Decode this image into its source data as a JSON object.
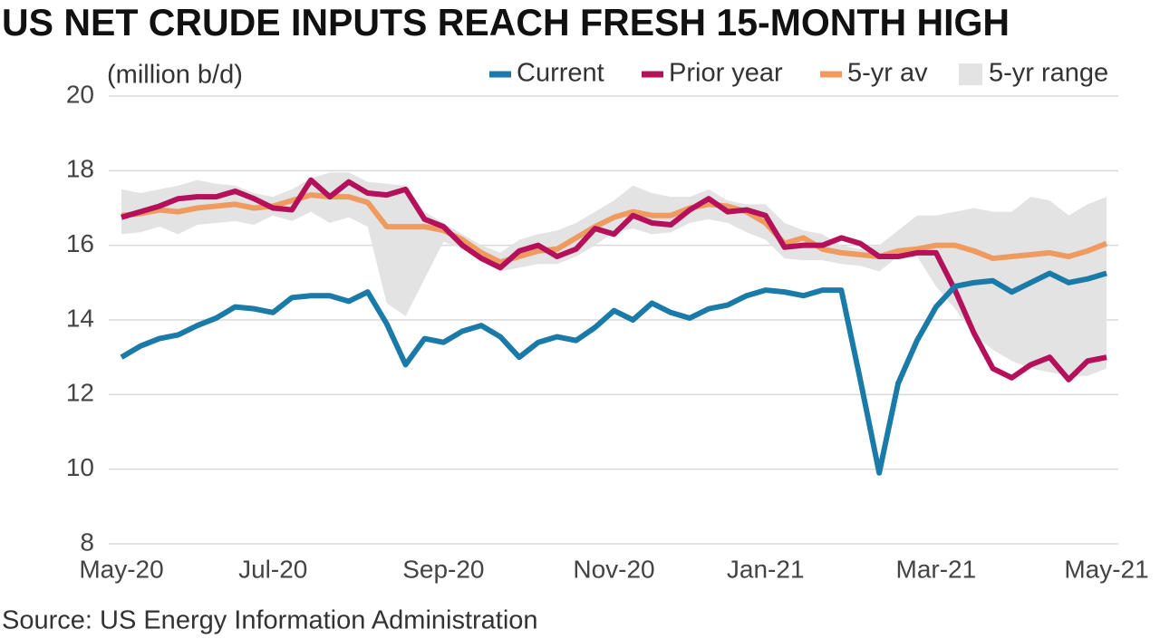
{
  "chart_data": {
    "type": "line",
    "title": "US NET CRUDE INPUTS REACH FRESH 15-MONTH HIGH",
    "y_label": "(million b/d)",
    "source": "Source: US Energy Information Administration",
    "categories": [
      "May-20",
      null,
      null,
      null,
      null,
      null,
      null,
      null,
      "Jul-20",
      null,
      null,
      null,
      null,
      null,
      null,
      null,
      null,
      "Sep-20",
      null,
      null,
      null,
      null,
      null,
      null,
      null,
      null,
      "Nov-20",
      null,
      null,
      null,
      null,
      null,
      null,
      null,
      "Jan-21",
      null,
      null,
      null,
      null,
      null,
      null,
      null,
      null,
      "Mar-21",
      null,
      null,
      null,
      null,
      null,
      null,
      null,
      null,
      "May-21"
    ],
    "ylim": [
      8,
      20
    ],
    "yticks": [
      8,
      10,
      12,
      14,
      16,
      18,
      20
    ],
    "grid": true,
    "legend": "top-right",
    "range": {
      "name": "5-yr range",
      "color": "#e3e3e3",
      "high": [
        17.5,
        17.4,
        17.5,
        17.6,
        17.75,
        17.65,
        17.6,
        17.4,
        17.3,
        17.5,
        17.8,
        17.95,
        17.95,
        17.7,
        17.65,
        17.6,
        16.9,
        16.6,
        16.3,
        16.0,
        15.8,
        16.15,
        16.3,
        16.4,
        16.6,
        16.9,
        17.2,
        17.6,
        17.4,
        17.3,
        17.3,
        17.5,
        17.2,
        17.1,
        17.1,
        16.6,
        16.4,
        16.3,
        16.0,
        15.9,
        16.0,
        16.4,
        16.8,
        16.8,
        16.9,
        17.0,
        16.9,
        16.9,
        17.3,
        17.2,
        16.8,
        17.1,
        17.3
      ],
      "low": [
        16.3,
        16.35,
        16.5,
        16.3,
        16.55,
        16.6,
        16.65,
        16.55,
        16.8,
        16.65,
        16.9,
        16.6,
        16.75,
        16.5,
        14.45,
        14.1,
        15.1,
        16.1,
        15.9,
        15.6,
        15.3,
        15.4,
        15.5,
        15.5,
        15.7,
        16.0,
        16.35,
        16.45,
        16.3,
        16.35,
        16.6,
        16.7,
        16.6,
        16.35,
        16.15,
        15.65,
        15.6,
        15.6,
        15.5,
        15.45,
        15.3,
        15.7,
        15.7,
        14.9,
        14.3,
        13.6,
        13.2,
        12.9,
        12.7,
        12.6,
        12.5,
        12.5,
        12.7
      ]
    },
    "series": [
      {
        "name": "Current",
        "color": "#1a7aa8",
        "values": [
          13.0,
          13.3,
          13.5,
          13.6,
          13.85,
          14.05,
          14.35,
          14.3,
          14.2,
          14.6,
          14.65,
          14.65,
          14.5,
          14.75,
          13.9,
          12.8,
          13.5,
          13.4,
          13.7,
          13.85,
          13.55,
          13.0,
          13.4,
          13.55,
          13.45,
          13.8,
          14.25,
          14.0,
          14.45,
          14.2,
          14.05,
          14.3,
          14.4,
          14.65,
          14.8,
          14.75,
          14.65,
          14.8,
          14.8,
          12.4,
          9.9,
          12.3,
          13.45,
          14.35,
          14.9,
          15.0,
          15.05,
          14.75,
          15.0,
          15.25,
          15.0,
          15.1,
          15.25
        ]
      },
      {
        "name": "Prior year",
        "color": "#b5105a",
        "values": [
          16.75,
          16.9,
          17.05,
          17.25,
          17.3,
          17.3,
          17.45,
          17.25,
          17.0,
          16.95,
          17.75,
          17.3,
          17.7,
          17.4,
          17.35,
          17.5,
          16.7,
          16.5,
          16.0,
          15.65,
          15.4,
          15.85,
          16.0,
          15.7,
          15.9,
          16.45,
          16.3,
          16.8,
          16.6,
          16.55,
          16.95,
          17.25,
          16.9,
          16.95,
          16.8,
          15.95,
          16.0,
          16.0,
          16.2,
          16.05,
          15.7,
          15.7,
          15.8,
          15.8,
          14.8,
          13.65,
          12.7,
          12.45,
          12.8,
          13.0,
          12.4,
          12.9,
          13.0
        ]
      },
      {
        "name": "5-yr av",
        "color": "#ef9a5e",
        "values": [
          16.8,
          16.85,
          16.95,
          16.9,
          17.0,
          17.05,
          17.1,
          17.0,
          17.05,
          17.2,
          17.35,
          17.3,
          17.3,
          17.15,
          16.5,
          16.5,
          16.5,
          16.4,
          16.15,
          15.8,
          15.55,
          15.7,
          15.85,
          15.9,
          16.2,
          16.5,
          16.75,
          16.9,
          16.8,
          16.8,
          17.0,
          17.1,
          17.05,
          16.9,
          16.6,
          16.05,
          16.2,
          15.9,
          15.8,
          15.75,
          15.7,
          15.85,
          15.9,
          16.0,
          16.0,
          15.85,
          15.65,
          15.7,
          15.75,
          15.8,
          15.7,
          15.85,
          16.05
        ]
      }
    ]
  }
}
